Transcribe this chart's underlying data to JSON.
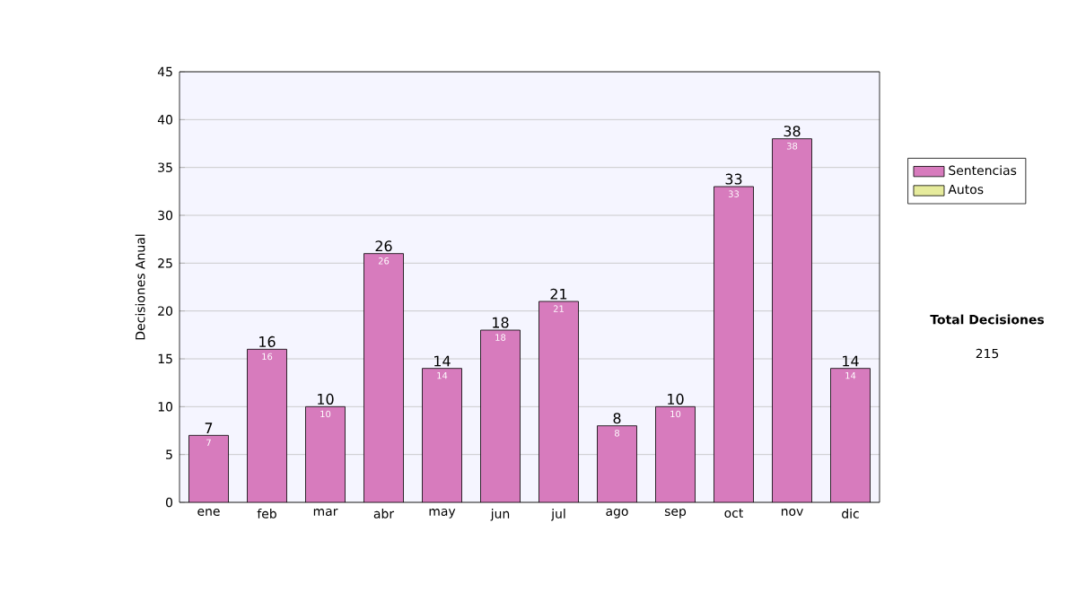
{
  "chart_data": {
    "type": "bar",
    "ylabel": "Decisiones Anual",
    "categories": [
      "ene",
      "feb",
      "mar",
      "abr",
      "may",
      "jun",
      "jul",
      "ago",
      "sep",
      "oct",
      "nov",
      "dic"
    ],
    "series": [
      {
        "name": "Sentencias",
        "color": "#d77bbd",
        "values": [
          7,
          16,
          10,
          26,
          14,
          18,
          21,
          8,
          10,
          33,
          38,
          14
        ],
        "value_labels": [
          "7",
          "16",
          "10",
          "26",
          "14",
          "18",
          "21",
          "8",
          "10",
          "33",
          "38",
          "14"
        ]
      },
      {
        "name": "Autos",
        "color": "#e6eb9c",
        "values": [
          null,
          null,
          null,
          null,
          null,
          null,
          null,
          null,
          null,
          null,
          null,
          null
        ]
      }
    ],
    "ylim": [
      0,
      45
    ],
    "yticks": [
      0,
      5,
      10,
      15,
      20,
      25,
      30,
      35,
      40,
      45
    ],
    "grid": "y",
    "legend": "right",
    "data_labels": true,
    "annotations": [
      "Total Decisiones",
      "215",
      {
        "text": "7",
        "x": "ene",
        "y": 7
      },
      {
        "text": "16",
        "x": "feb",
        "y": 16
      },
      {
        "text": "10",
        "x": "mar",
        "y": 10
      },
      {
        "text": "26",
        "x": "abr",
        "y": 26
      },
      {
        "text": "14",
        "x": "may",
        "y": 14
      },
      {
        "text": "18",
        "x": "jun",
        "y": 18
      },
      {
        "text": "21",
        "x": "jul",
        "y": 21
      },
      {
        "text": "8",
        "x": "ago",
        "y": 8
      },
      {
        "text": "10",
        "x": "sep",
        "y": 10
      },
      {
        "text": "33",
        "x": "oct",
        "y": 33
      },
      {
        "text": "38",
        "x": "nov",
        "y": 38
      },
      {
        "text": "14",
        "x": "dic",
        "y": 14
      }
    ]
  }
}
